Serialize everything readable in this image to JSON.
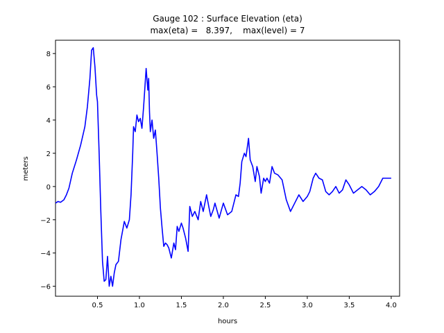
{
  "chart_data": {
    "type": "line",
    "title": "Gauge 102 : Surface Elevation (eta)",
    "subtitle": "max(eta) =   8.397,    max(level) = 7",
    "xlabel": "hours",
    "ylabel": "meters",
    "xlim": [
      0.0,
      4.1
    ],
    "ylim": [
      -6.6,
      8.8
    ],
    "xticks": [
      0.5,
      1.0,
      1.5,
      2.0,
      2.5,
      3.0,
      3.5,
      4.0
    ],
    "xtick_labels": [
      "0.5",
      "1.0",
      "1.5",
      "2.0",
      "2.5",
      "3.0",
      "3.5",
      "4.0"
    ],
    "yticks": [
      -6,
      -4,
      -2,
      0,
      2,
      4,
      6,
      8
    ],
    "ytick_labels": [
      "−6",
      "−4",
      "−2",
      "0",
      "2",
      "4",
      "6",
      "8"
    ],
    "grid": false,
    "series": [
      {
        "name": "eta",
        "color": "#0000ff",
        "x": [
          0.0,
          0.03,
          0.06,
          0.1,
          0.13,
          0.16,
          0.2,
          0.25,
          0.3,
          0.35,
          0.38,
          0.41,
          0.43,
          0.45,
          0.47,
          0.49,
          0.5,
          0.52,
          0.54,
          0.56,
          0.58,
          0.6,
          0.62,
          0.64,
          0.66,
          0.68,
          0.7,
          0.72,
          0.75,
          0.78,
          0.82,
          0.85,
          0.88,
          0.9,
          0.92,
          0.93,
          0.95,
          0.97,
          0.99,
          1.01,
          1.03,
          1.05,
          1.08,
          1.1,
          1.11,
          1.12,
          1.13,
          1.15,
          1.17,
          1.19,
          1.21,
          1.23,
          1.25,
          1.27,
          1.29,
          1.31,
          1.33,
          1.35,
          1.38,
          1.41,
          1.43,
          1.45,
          1.47,
          1.5,
          1.52,
          1.55,
          1.58,
          1.6,
          1.63,
          1.66,
          1.7,
          1.73,
          1.76,
          1.8,
          1.83,
          1.85,
          1.88,
          1.9,
          1.95,
          2.0,
          2.05,
          2.1,
          2.15,
          2.18,
          2.2,
          2.22,
          2.25,
          2.27,
          2.3,
          2.32,
          2.35,
          2.38,
          2.4,
          2.43,
          2.45,
          2.48,
          2.5,
          2.52,
          2.55,
          2.58,
          2.61,
          2.65,
          2.7,
          2.75,
          2.8,
          2.85,
          2.9,
          2.95,
          3.0,
          3.03,
          3.07,
          3.1,
          3.14,
          3.18,
          3.22,
          3.26,
          3.3,
          3.34,
          3.38,
          3.42,
          3.46,
          3.5,
          3.55,
          3.6,
          3.65,
          3.7,
          3.75,
          3.8,
          3.85,
          3.9,
          3.95,
          4.0
        ],
        "values": [
          -1.0,
          -0.9,
          -0.95,
          -0.8,
          -0.5,
          -0.1,
          0.8,
          1.6,
          2.5,
          3.6,
          4.8,
          6.5,
          8.2,
          8.35,
          7.2,
          5.5,
          5.1,
          2.0,
          -1.5,
          -4.5,
          -5.7,
          -5.6,
          -4.2,
          -6.0,
          -5.4,
          -6.0,
          -5.2,
          -4.7,
          -4.5,
          -3.2,
          -2.1,
          -2.5,
          -2.0,
          -0.5,
          2.0,
          3.6,
          3.3,
          4.3,
          3.9,
          4.1,
          3.5,
          4.8,
          7.1,
          5.8,
          6.5,
          4.5,
          3.3,
          4.0,
          2.9,
          3.4,
          2.0,
          0.5,
          -1.3,
          -2.5,
          -3.6,
          -3.4,
          -3.5,
          -3.7,
          -4.3,
          -3.4,
          -3.8,
          -2.4,
          -2.7,
          -2.2,
          -2.5,
          -3.1,
          -3.9,
          -1.2,
          -1.8,
          -1.5,
          -2.0,
          -0.9,
          -1.5,
          -0.5,
          -1.3,
          -1.8,
          -1.4,
          -1.0,
          -1.9,
          -1.0,
          -1.7,
          -1.5,
          -0.5,
          -0.6,
          0.2,
          1.5,
          2.0,
          1.8,
          2.9,
          1.6,
          1.2,
          0.3,
          1.2,
          0.6,
          -0.4,
          0.5,
          0.3,
          0.5,
          0.2,
          1.2,
          0.8,
          0.7,
          0.4,
          -0.8,
          -1.5,
          -1.0,
          -0.5,
          -0.9,
          -0.6,
          -0.3,
          0.5,
          0.8,
          0.5,
          0.4,
          -0.3,
          -0.5,
          -0.3,
          0.0,
          -0.4,
          -0.2,
          0.4,
          0.1,
          -0.4,
          -0.2,
          0.0,
          -0.2,
          -0.5,
          -0.3,
          0.0,
          0.5,
          0.5,
          0.5
        ]
      }
    ]
  }
}
